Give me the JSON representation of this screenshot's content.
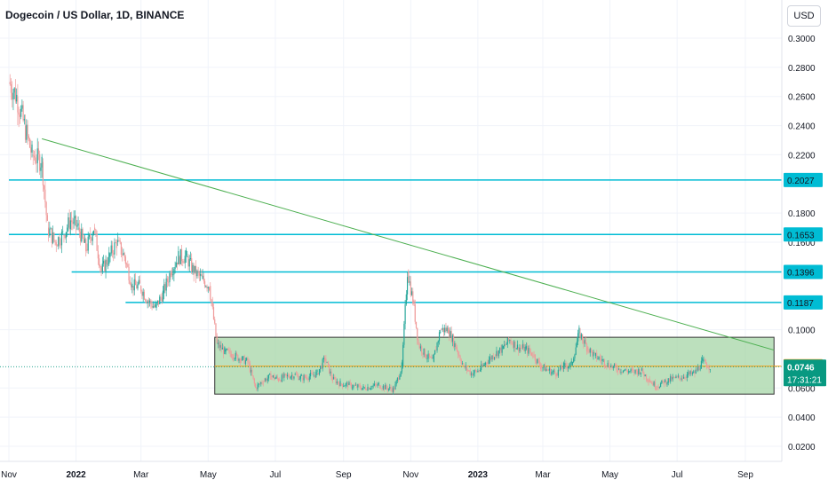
{
  "header": {
    "title": "Dogecoin / US Dollar, 1D, BINANCE",
    "currency": "USD"
  },
  "colors": {
    "up": "#26a69a",
    "down": "#ef9a9a",
    "level": "#00bcd4",
    "trend": "#4caf50",
    "box_fill": "#a5d6a7",
    "box_border": "#333333",
    "orange": "#ff9800",
    "price_tag": "#089981"
  },
  "chart_data": {
    "type": "candlestick",
    "title": "Dogecoin / US Dollar, 1D, BINANCE",
    "ylabel": "USD",
    "ylim": [
      0.01,
      0.31
    ],
    "xlim": [
      "2021-11-01",
      "2023-09-27"
    ],
    "y_ticks": [
      "0.3000",
      "0.2800",
      "0.2600",
      "0.2400",
      "0.2200",
      "0.1800",
      "0.1600",
      "0.1000",
      "0.0600",
      "0.0400",
      "0.0200"
    ],
    "x_ticks": [
      {
        "label": "Nov",
        "date": "2021-11-01"
      },
      {
        "label": "2022",
        "date": "2022-01-01",
        "bold": true
      },
      {
        "label": "Mar",
        "date": "2022-03-01"
      },
      {
        "label": "May",
        "date": "2022-05-01"
      },
      {
        "label": "Jul",
        "date": "2022-07-01"
      },
      {
        "label": "Sep",
        "date": "2022-09-01"
      },
      {
        "label": "Nov",
        "date": "2022-11-01"
      },
      {
        "label": "2023",
        "date": "2023-01-01",
        "bold": true
      },
      {
        "label": "Mar",
        "date": "2023-03-01"
      },
      {
        "label": "May",
        "date": "2023-05-01"
      },
      {
        "label": "Jul",
        "date": "2023-07-01"
      },
      {
        "label": "Sep",
        "date": "2023-09-01"
      }
    ],
    "levels": [
      {
        "value": 0.2027,
        "label": "0.2027",
        "start": "2021-11-01"
      },
      {
        "value": 0.1653,
        "label": "0.1653",
        "start": "2021-11-01"
      },
      {
        "value": 0.1396,
        "label": "0.1396",
        "start": "2021-12-28"
      },
      {
        "value": 0.1187,
        "label": "0.1187",
        "start": "2022-02-15"
      }
    ],
    "trendline": {
      "from": {
        "date": "2021-12-01",
        "value": 0.231
      },
      "to": {
        "date": "2023-09-27",
        "value": 0.086
      }
    },
    "range_box": {
      "from": "2022-05-07",
      "to": "2023-09-27",
      "top": 0.0948,
      "bottom": 0.0558
    },
    "orange_line": {
      "value": 0.0749,
      "label": "0.0749",
      "from": "2022-05-07"
    },
    "last_price": {
      "value": 0.0746,
      "label": "0.0746",
      "countdown": "17:31:21"
    },
    "price_series": [
      {
        "date": "2021-11-01",
        "value": 0.27
      },
      {
        "date": "2021-11-08",
        "value": 0.26
      },
      {
        "date": "2021-11-15",
        "value": 0.24
      },
      {
        "date": "2021-11-22",
        "value": 0.22
      },
      {
        "date": "2021-12-01",
        "value": 0.215
      },
      {
        "date": "2021-12-06",
        "value": 0.17
      },
      {
        "date": "2021-12-13",
        "value": 0.16
      },
      {
        "date": "2021-12-20",
        "value": 0.165
      },
      {
        "date": "2021-12-27",
        "value": 0.175
      },
      {
        "date": "2022-01-03",
        "value": 0.17
      },
      {
        "date": "2022-01-10",
        "value": 0.155
      },
      {
        "date": "2022-01-17",
        "value": 0.17
      },
      {
        "date": "2022-01-24",
        "value": 0.14
      },
      {
        "date": "2022-01-31",
        "value": 0.15
      },
      {
        "date": "2022-02-07",
        "value": 0.16
      },
      {
        "date": "2022-02-14",
        "value": 0.15
      },
      {
        "date": "2022-02-21",
        "value": 0.13
      },
      {
        "date": "2022-02-28",
        "value": 0.13
      },
      {
        "date": "2022-03-07",
        "value": 0.12
      },
      {
        "date": "2022-03-14",
        "value": 0.115
      },
      {
        "date": "2022-03-21",
        "value": 0.125
      },
      {
        "date": "2022-03-28",
        "value": 0.14
      },
      {
        "date": "2022-04-04",
        "value": 0.15
      },
      {
        "date": "2022-04-11",
        "value": 0.15
      },
      {
        "date": "2022-04-18",
        "value": 0.14
      },
      {
        "date": "2022-04-25",
        "value": 0.135
      },
      {
        "date": "2022-05-02",
        "value": 0.13
      },
      {
        "date": "2022-05-09",
        "value": 0.09
      },
      {
        "date": "2022-05-16",
        "value": 0.085
      },
      {
        "date": "2022-05-23",
        "value": 0.083
      },
      {
        "date": "2022-05-30",
        "value": 0.08
      },
      {
        "date": "2022-06-06",
        "value": 0.078
      },
      {
        "date": "2022-06-13",
        "value": 0.06
      },
      {
        "date": "2022-06-20",
        "value": 0.065
      },
      {
        "date": "2022-06-27",
        "value": 0.068
      },
      {
        "date": "2022-07-04",
        "value": 0.066
      },
      {
        "date": "2022-07-11",
        "value": 0.068
      },
      {
        "date": "2022-07-18",
        "value": 0.069
      },
      {
        "date": "2022-07-25",
        "value": 0.067
      },
      {
        "date": "2022-08-01",
        "value": 0.068
      },
      {
        "date": "2022-08-08",
        "value": 0.07
      },
      {
        "date": "2022-08-15",
        "value": 0.08
      },
      {
        "date": "2022-08-22",
        "value": 0.066
      },
      {
        "date": "2022-08-29",
        "value": 0.063
      },
      {
        "date": "2022-09-05",
        "value": 0.062
      },
      {
        "date": "2022-09-12",
        "value": 0.061
      },
      {
        "date": "2022-09-19",
        "value": 0.06
      },
      {
        "date": "2022-09-26",
        "value": 0.061
      },
      {
        "date": "2022-10-03",
        "value": 0.062
      },
      {
        "date": "2022-10-10",
        "value": 0.06
      },
      {
        "date": "2022-10-17",
        "value": 0.059
      },
      {
        "date": "2022-10-24",
        "value": 0.075
      },
      {
        "date": "2022-10-29",
        "value": 0.14
      },
      {
        "date": "2022-11-03",
        "value": 0.12
      },
      {
        "date": "2022-11-08",
        "value": 0.09
      },
      {
        "date": "2022-11-14",
        "value": 0.083
      },
      {
        "date": "2022-11-21",
        "value": 0.078
      },
      {
        "date": "2022-11-28",
        "value": 0.1
      },
      {
        "date": "2022-12-05",
        "value": 0.1
      },
      {
        "date": "2022-12-12",
        "value": 0.088
      },
      {
        "date": "2022-12-19",
        "value": 0.075
      },
      {
        "date": "2022-12-26",
        "value": 0.07
      },
      {
        "date": "2023-01-02",
        "value": 0.072
      },
      {
        "date": "2023-01-09",
        "value": 0.078
      },
      {
        "date": "2023-01-16",
        "value": 0.083
      },
      {
        "date": "2023-01-23",
        "value": 0.087
      },
      {
        "date": "2023-01-30",
        "value": 0.093
      },
      {
        "date": "2023-02-06",
        "value": 0.088
      },
      {
        "date": "2023-02-13",
        "value": 0.087
      },
      {
        "date": "2023-02-20",
        "value": 0.083
      },
      {
        "date": "2023-02-27",
        "value": 0.075
      },
      {
        "date": "2023-03-06",
        "value": 0.072
      },
      {
        "date": "2023-03-13",
        "value": 0.07
      },
      {
        "date": "2023-03-20",
        "value": 0.075
      },
      {
        "date": "2023-03-27",
        "value": 0.076
      },
      {
        "date": "2023-04-03",
        "value": 0.098
      },
      {
        "date": "2023-04-10",
        "value": 0.088
      },
      {
        "date": "2023-04-17",
        "value": 0.082
      },
      {
        "date": "2023-04-24",
        "value": 0.079
      },
      {
        "date": "2023-05-01",
        "value": 0.075
      },
      {
        "date": "2023-05-08",
        "value": 0.073
      },
      {
        "date": "2023-05-15",
        "value": 0.072
      },
      {
        "date": "2023-05-22",
        "value": 0.071
      },
      {
        "date": "2023-05-29",
        "value": 0.072
      },
      {
        "date": "2023-06-05",
        "value": 0.066
      },
      {
        "date": "2023-06-12",
        "value": 0.061
      },
      {
        "date": "2023-06-19",
        "value": 0.064
      },
      {
        "date": "2023-06-26",
        "value": 0.066
      },
      {
        "date": "2023-07-03",
        "value": 0.067
      },
      {
        "date": "2023-07-10",
        "value": 0.069
      },
      {
        "date": "2023-07-17",
        "value": 0.07
      },
      {
        "date": "2023-07-24",
        "value": 0.078
      },
      {
        "date": "2023-07-31",
        "value": 0.0746
      }
    ]
  }
}
